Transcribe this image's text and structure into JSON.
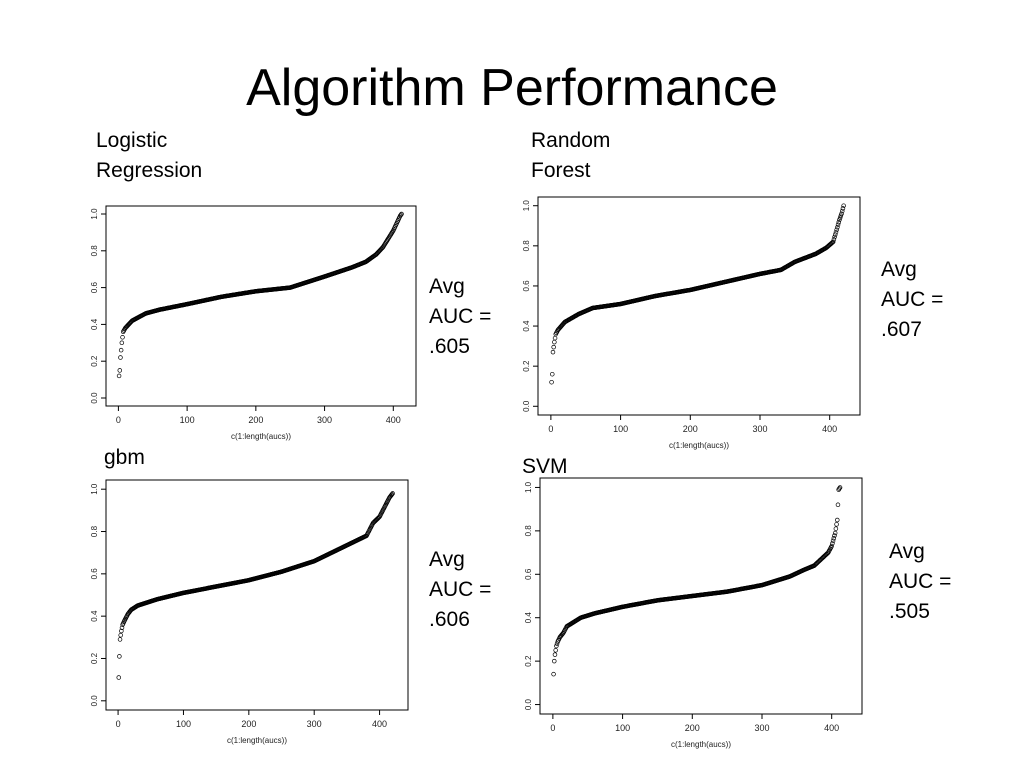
{
  "slide": {
    "title": "Algorithm Performance"
  },
  "panels": [
    {
      "label": "Logistic\nRegression",
      "avg_line1": "Avg",
      "avg_line2": "AUC =",
      "avg_value": ".605"
    },
    {
      "label": "Random\nForest",
      "avg_line1": "Avg",
      "avg_line2": "AUC =",
      "avg_value": ".607"
    },
    {
      "label": "gbm",
      "avg_line1": "Avg",
      "avg_line2": "AUC =",
      "avg_value": ".606"
    },
    {
      "label": "SVM",
      "avg_line1": "Avg",
      "avg_line2": "AUC =",
      "avg_value": ".505"
    }
  ],
  "chart_data": [
    {
      "type": "scatter",
      "marker": "open-circle",
      "color": "#000000",
      "xlabel": "c(1:length(aucs))",
      "ylabel": "",
      "xlim": [
        0,
        415
      ],
      "ylim": [
        0,
        1
      ],
      "xticks": [
        "0",
        "100",
        "200",
        "300",
        "400"
      ],
      "yticks": [
        "0.0",
        "0.2",
        "0.4",
        "0.6",
        "0.8",
        "1.0"
      ],
      "n": 412,
      "curve": {
        "x": [
          1,
          2,
          3,
          5,
          7,
          10,
          15,
          20,
          30,
          40,
          60,
          100,
          150,
          200,
          250,
          300,
          340,
          360,
          375,
          385,
          395,
          400,
          405,
          410,
          412
        ],
        "y": [
          0.12,
          0.15,
          0.22,
          0.3,
          0.36,
          0.38,
          0.4,
          0.42,
          0.44,
          0.46,
          0.48,
          0.51,
          0.55,
          0.58,
          0.6,
          0.66,
          0.71,
          0.74,
          0.78,
          0.82,
          0.88,
          0.91,
          0.95,
          0.99,
          1.0
        ]
      }
    },
    {
      "type": "scatter",
      "marker": "open-circle",
      "color": "#000000",
      "xlabel": "c(1:length(aucs))",
      "ylabel": "",
      "xlim": [
        0,
        425
      ],
      "ylim": [
        0,
        1
      ],
      "xticks": [
        "0",
        "100",
        "200",
        "300",
        "400"
      ],
      "yticks": [
        "0.0",
        "0.2",
        "0.4",
        "0.6",
        "0.8",
        "1.0"
      ],
      "n": 420,
      "curve": {
        "x": [
          1,
          2,
          3,
          5,
          7,
          10,
          15,
          20,
          30,
          40,
          60,
          100,
          150,
          200,
          250,
          300,
          330,
          350,
          365,
          380,
          395,
          405,
          410,
          414,
          417,
          420
        ],
        "y": [
          0.12,
          0.16,
          0.27,
          0.32,
          0.36,
          0.38,
          0.4,
          0.42,
          0.44,
          0.46,
          0.49,
          0.51,
          0.55,
          0.58,
          0.62,
          0.66,
          0.68,
          0.72,
          0.74,
          0.76,
          0.79,
          0.82,
          0.88,
          0.93,
          0.96,
          1.0
        ]
      }
    },
    {
      "type": "scatter",
      "marker": "open-circle",
      "color": "#000000",
      "xlabel": "c(1:length(aucs))",
      "ylabel": "",
      "xlim": [
        0,
        425
      ],
      "ylim": [
        0,
        1
      ],
      "xticks": [
        "0",
        "100",
        "200",
        "300",
        "400"
      ],
      "yticks": [
        "0.0",
        "0.2",
        "0.4",
        "0.6",
        "0.8",
        "1.0"
      ],
      "n": 420,
      "curve": {
        "x": [
          1,
          2,
          3,
          5,
          7,
          10,
          15,
          20,
          30,
          40,
          60,
          100,
          150,
          200,
          250,
          300,
          340,
          360,
          380,
          390,
          400,
          405,
          410,
          415,
          420
        ],
        "y": [
          0.11,
          0.21,
          0.29,
          0.33,
          0.36,
          0.38,
          0.41,
          0.43,
          0.45,
          0.46,
          0.48,
          0.51,
          0.54,
          0.57,
          0.61,
          0.66,
          0.72,
          0.75,
          0.78,
          0.84,
          0.87,
          0.9,
          0.93,
          0.96,
          0.98
        ]
      }
    },
    {
      "type": "scatter",
      "marker": "open-circle",
      "color": "#000000",
      "xlabel": "c(1:length(aucs))",
      "ylabel": "",
      "xlim": [
        0,
        425
      ],
      "ylim": [
        0,
        1
      ],
      "xticks": [
        "0",
        "100",
        "200",
        "300",
        "400"
      ],
      "yticks": [
        "0.0",
        "0.2",
        "0.4",
        "0.6",
        "0.8",
        "1.0"
      ],
      "n": 412,
      "curve": {
        "x": [
          1,
          2,
          3,
          5,
          7,
          10,
          15,
          20,
          30,
          40,
          60,
          100,
          150,
          200,
          250,
          300,
          340,
          360,
          375,
          385,
          395,
          400,
          405,
          408,
          410,
          412
        ],
        "y": [
          0.14,
          0.2,
          0.23,
          0.27,
          0.29,
          0.31,
          0.33,
          0.36,
          0.38,
          0.4,
          0.42,
          0.45,
          0.48,
          0.5,
          0.52,
          0.55,
          0.59,
          0.62,
          0.64,
          0.67,
          0.7,
          0.73,
          0.79,
          0.85,
          0.99,
          1.0
        ]
      }
    }
  ]
}
